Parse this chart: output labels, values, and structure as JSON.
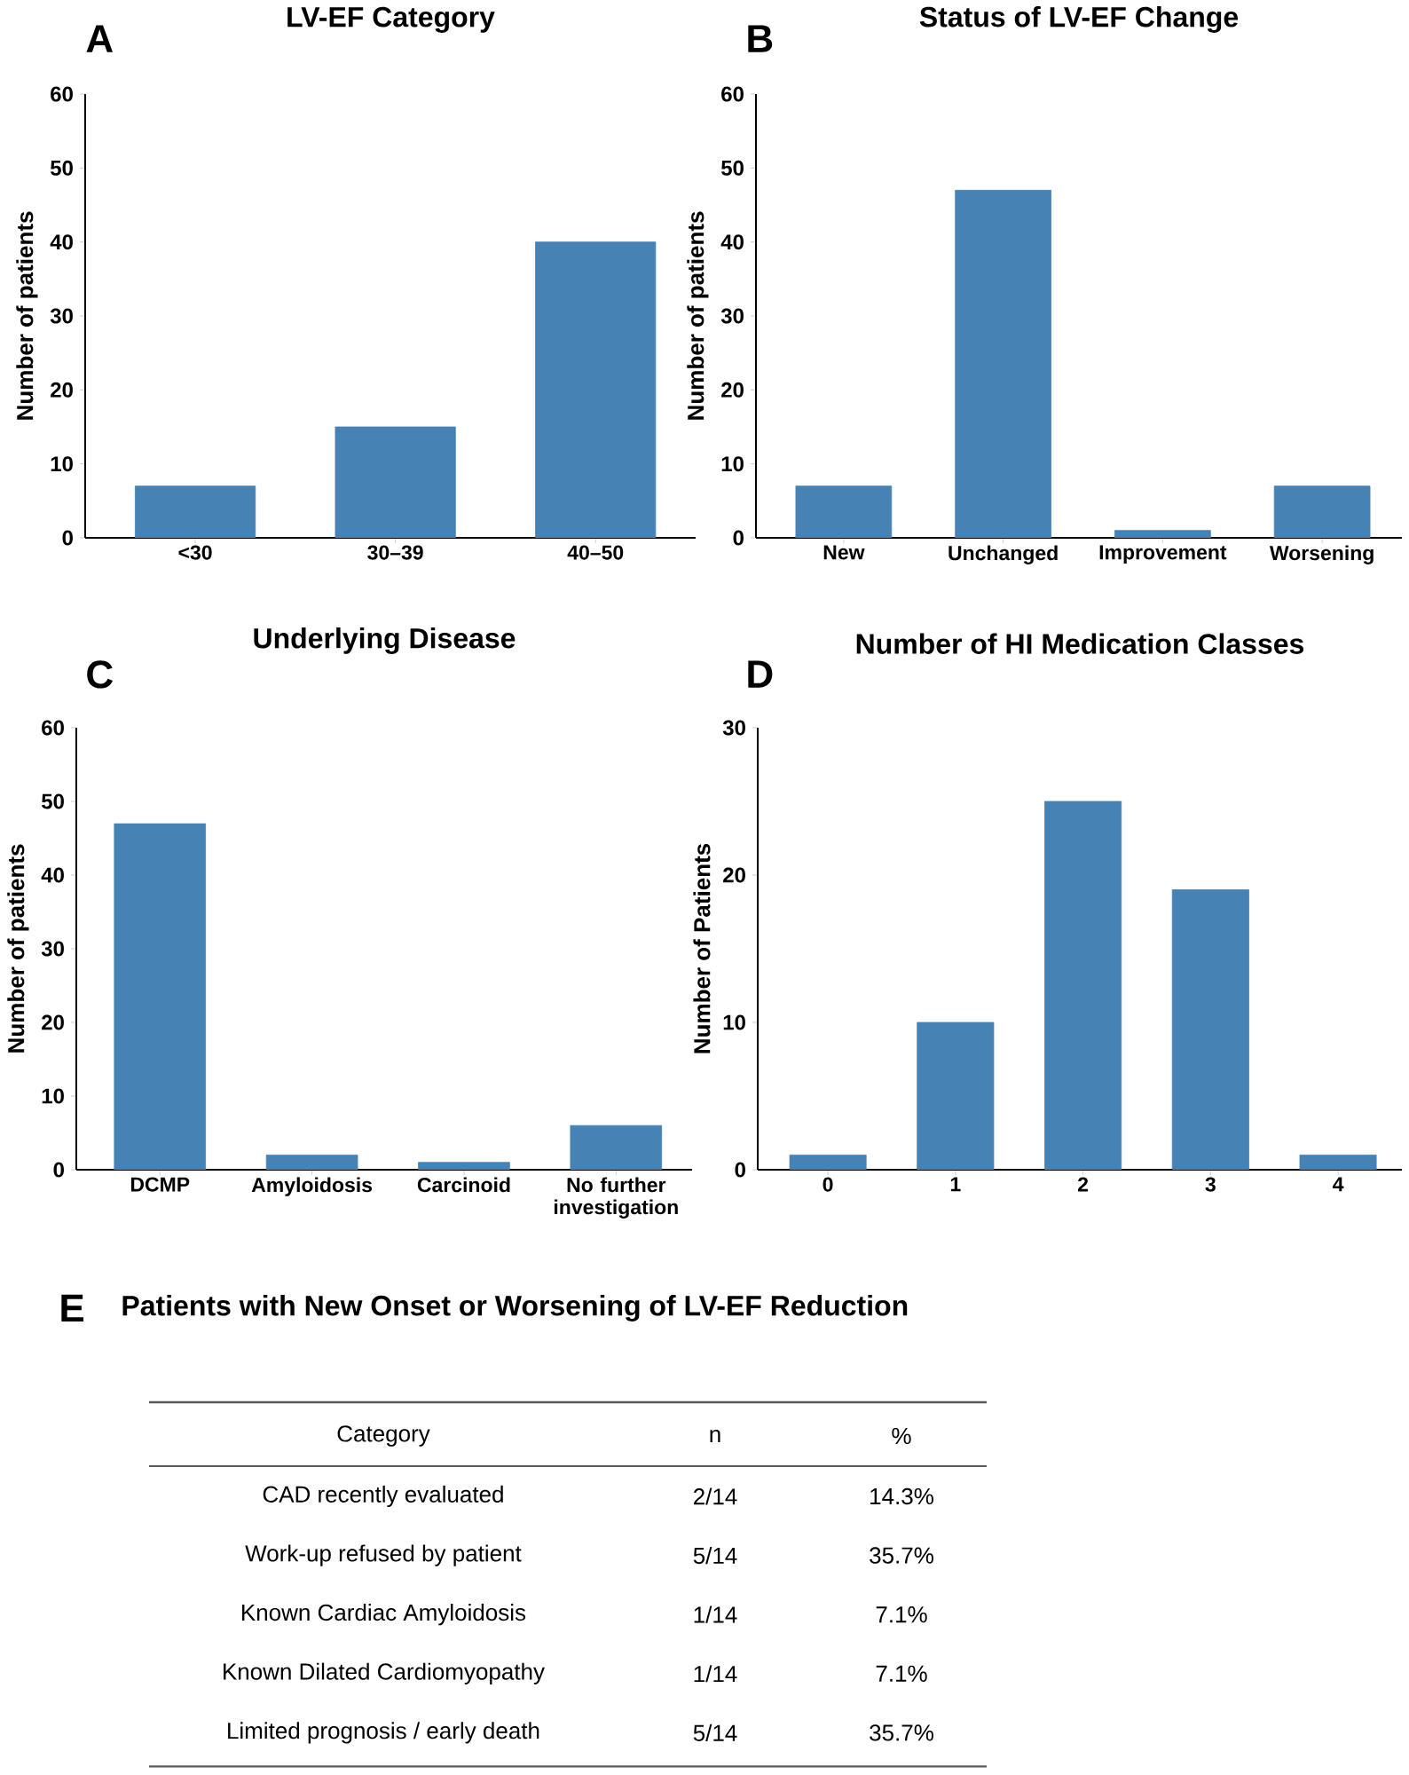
{
  "chart_data": [
    {
      "type": "bar",
      "title": "LV-EF Category",
      "annotations": [
        "A"
      ],
      "ylabel": "Number of patients",
      "categories": [
        "<30",
        "30–39",
        "40–50"
      ],
      "values": [
        7,
        15,
        40
      ],
      "color": "#4682b4",
      "ylim": [
        0,
        60
      ],
      "yticks": [
        0,
        10,
        20,
        30,
        40,
        50,
        60
      ]
    },
    {
      "type": "bar",
      "title": "Status of LV-EF Change",
      "annotations": [
        "B"
      ],
      "ylabel": "Number of patients",
      "categories": [
        "New",
        "Unchanged",
        "Improvement",
        "Worsening"
      ],
      "values": [
        7,
        47,
        1,
        7
      ],
      "color": "#4682b4",
      "ylim": [
        0,
        60
      ],
      "yticks": [
        0,
        10,
        20,
        30,
        40,
        50,
        60
      ]
    },
    {
      "type": "bar",
      "title": "Underlying Disease",
      "annotations": [
        "C"
      ],
      "ylabel": "Number of patients",
      "categories": [
        "DCMP",
        "Amyloidosis",
        "Carcinoid",
        "No further investigation"
      ],
      "values": [
        47,
        2,
        1,
        6
      ],
      "color": "#4682b4",
      "ylim": [
        0,
        60
      ],
      "yticks": [
        0,
        10,
        20,
        30,
        40,
        50,
        60
      ]
    },
    {
      "type": "bar",
      "title": "Number of HI Medication Classes",
      "annotations": [
        "D"
      ],
      "ylabel": "Number of Patients",
      "categories": [
        "0",
        "1",
        "2",
        "3",
        "4"
      ],
      "values": [
        1,
        10,
        25,
        19,
        1
      ],
      "color": "#4682b4",
      "ylim": [
        0,
        30
      ],
      "yticks": [
        0,
        10,
        20,
        30
      ]
    },
    {
      "type": "other",
      "title": "Patients with New Onset or Worsening of LV-EF Reduction",
      "annotations": [
        "E",
        "Category",
        "n",
        "%",
        "CAD recently evaluated",
        "2/14",
        "14.3%",
        "Work-up refused by patient",
        "5/14",
        "35.7%",
        "Known Cardiac Amyloidosis",
        "1/14",
        "7.1%",
        "Known Dilated Cardiomyopathy",
        "1/14",
        "7.1%",
        "Limited prognosis / early death",
        "5/14",
        "35.7%"
      ]
    }
  ]
}
